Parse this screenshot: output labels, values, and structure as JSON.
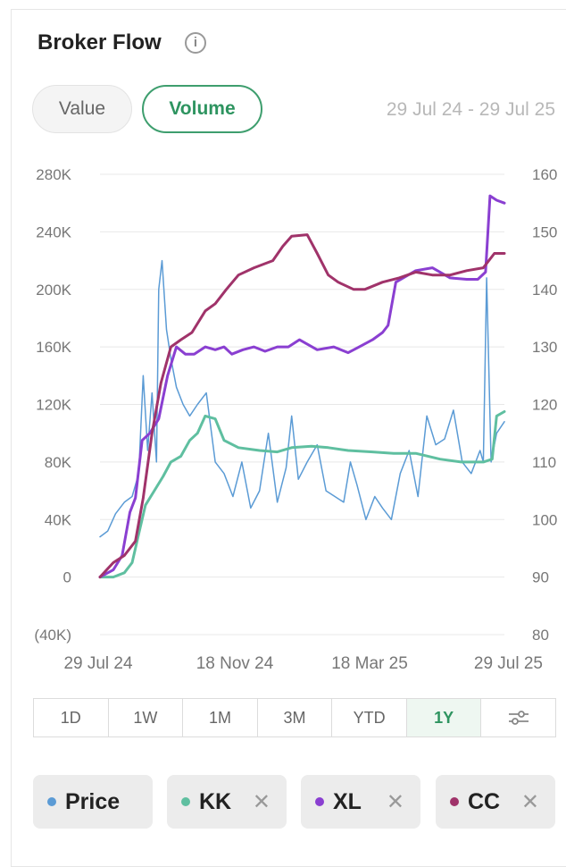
{
  "header": {
    "title": "Broker Flow",
    "info_icon": "info-icon",
    "info_glyph": "i"
  },
  "toggles": [
    {
      "label": "Value",
      "active": false
    },
    {
      "label": "Volume",
      "active": true
    }
  ],
  "date_range": "29 Jul 24 - 29 Jul 25",
  "periods": [
    {
      "label": "1D",
      "active": false
    },
    {
      "label": "1W",
      "active": false
    },
    {
      "label": "1M",
      "active": false
    },
    {
      "label": "3M",
      "active": false
    },
    {
      "label": "YTD",
      "active": false
    },
    {
      "label": "1Y",
      "active": true
    }
  ],
  "settings_icon": "sliders-icon",
  "legend": [
    {
      "label": "Price",
      "color": "#5b9bd5",
      "removable": false
    },
    {
      "label": "KK",
      "color": "#5fbfa0",
      "removable": true
    },
    {
      "label": "XL",
      "color": "#8a3fd1",
      "removable": true
    },
    {
      "label": "CC",
      "color": "#a0336a",
      "removable": true
    }
  ],
  "remove_glyph": "✕",
  "chart_data": {
    "type": "line",
    "x_ticks": [
      "29 Jul 24",
      "18 Nov 24",
      "18 Mar 25",
      "29 Jul 25"
    ],
    "x_range": [
      "2024-07-29",
      "2025-07-29"
    ],
    "left_axis": {
      "ticks": [
        "280K",
        "240K",
        "200K",
        "160K",
        "120K",
        "80K",
        "40K",
        "0",
        "(40K)"
      ],
      "ylim": [
        -40000,
        280000
      ]
    },
    "right_axis": {
      "ticks": [
        "160",
        "150",
        "140",
        "130",
        "120",
        "110",
        "100",
        "90",
        "80"
      ],
      "ylim": [
        80,
        160
      ]
    },
    "grid": true,
    "series": [
      {
        "name": "Price",
        "axis": "right",
        "color": "#5b9bd5",
        "stroke": 1.5,
        "x": [
          "2024-07-29",
          "2024-08-05",
          "2024-08-12",
          "2024-08-20",
          "2024-08-27",
          "2024-09-02",
          "2024-09-06",
          "2024-09-10",
          "2024-09-14",
          "2024-09-18",
          "2024-09-20",
          "2024-09-23",
          "2024-09-27",
          "2024-10-01",
          "2024-10-06",
          "2024-10-12",
          "2024-10-18",
          "2024-10-25",
          "2024-11-02",
          "2024-11-10",
          "2024-11-18",
          "2024-11-26",
          "2024-12-04",
          "2024-12-12",
          "2024-12-20",
          "2024-12-28",
          "2025-01-05",
          "2025-01-13",
          "2025-01-18",
          "2025-01-24",
          "2025-02-01",
          "2025-02-10",
          "2025-02-18",
          "2025-02-26",
          "2025-03-06",
          "2025-03-12",
          "2025-03-18",
          "2025-03-26",
          "2025-04-03",
          "2025-04-10",
          "2025-04-18",
          "2025-04-26",
          "2025-05-04",
          "2025-05-12",
          "2025-05-20",
          "2025-05-28",
          "2025-06-05",
          "2025-06-13",
          "2025-06-21",
          "2025-06-29",
          "2025-07-07",
          "2025-07-10",
          "2025-07-13",
          "2025-07-17",
          "2025-07-22",
          "2025-07-29"
        ],
        "y": [
          97,
          98,
          101,
          103,
          104,
          108,
          125,
          112,
          122,
          110,
          140,
          145,
          133,
          128,
          123,
          120,
          118,
          120,
          122,
          110,
          108,
          104,
          110,
          102,
          105,
          115,
          103,
          109,
          118,
          107,
          110,
          113,
          105,
          104,
          103,
          110,
          106,
          100,
          104,
          102,
          100,
          108,
          112,
          104,
          118,
          113,
          114,
          119,
          110,
          108,
          112,
          110,
          142,
          110,
          115,
          117
        ]
      },
      {
        "name": "KK",
        "axis": "left",
        "color": "#5fbfa0",
        "stroke": 3,
        "x": [
          "2024-07-29",
          "2024-08-10",
          "2024-08-20",
          "2024-08-27",
          "2024-09-02",
          "2024-09-08",
          "2024-09-16",
          "2024-09-24",
          "2024-10-01",
          "2024-10-10",
          "2024-10-18",
          "2024-10-25",
          "2024-11-01",
          "2024-11-10",
          "2024-11-18",
          "2024-12-01",
          "2024-12-20",
          "2025-01-05",
          "2025-01-18",
          "2025-02-05",
          "2025-02-20",
          "2025-03-10",
          "2025-04-01",
          "2025-04-20",
          "2025-05-10",
          "2025-06-01",
          "2025-06-20",
          "2025-07-10",
          "2025-07-18",
          "2025-07-22",
          "2025-07-29"
        ],
        "y": [
          0,
          0,
          3000,
          10000,
          30000,
          50000,
          60000,
          70000,
          80000,
          84000,
          95000,
          100000,
          112000,
          110000,
          95000,
          90000,
          88000,
          87000,
          90000,
          91000,
          90000,
          88000,
          87000,
          86000,
          86000,
          82000,
          80000,
          80000,
          82000,
          112000,
          115000
        ]
      },
      {
        "name": "XL",
        "axis": "left",
        "color": "#8a3fd1",
        "stroke": 3,
        "x": [
          "2024-07-29",
          "2024-08-10",
          "2024-08-18",
          "2024-08-25",
          "2024-08-30",
          "2024-09-05",
          "2024-09-12",
          "2024-09-20",
          "2024-09-28",
          "2024-10-06",
          "2024-10-14",
          "2024-10-22",
          "2024-11-01",
          "2024-11-10",
          "2024-11-18",
          "2024-11-25",
          "2024-12-05",
          "2024-12-15",
          "2024-12-25",
          "2025-01-05",
          "2025-01-15",
          "2025-01-25",
          "2025-02-10",
          "2025-02-25",
          "2025-03-10",
          "2025-03-20",
          "2025-04-01",
          "2025-04-10",
          "2025-04-15",
          "2025-04-22",
          "2025-05-10",
          "2025-05-25",
          "2025-06-10",
          "2025-06-25",
          "2025-07-05",
          "2025-07-12",
          "2025-07-16",
          "2025-07-22",
          "2025-07-29"
        ],
        "y": [
          0,
          5000,
          15000,
          45000,
          55000,
          95000,
          100000,
          110000,
          140000,
          160000,
          155000,
          155000,
          160000,
          158000,
          160000,
          155000,
          158000,
          160000,
          157000,
          160000,
          160000,
          165000,
          158000,
          160000,
          156000,
          160000,
          165000,
          170000,
          175000,
          205000,
          213000,
          215000,
          208000,
          207000,
          207000,
          212000,
          265000,
          262000,
          260000
        ]
      },
      {
        "name": "CC",
        "axis": "left",
        "color": "#a0336a",
        "stroke": 3,
        "x": [
          "2024-07-29",
          "2024-08-10",
          "2024-08-20",
          "2024-08-30",
          "2024-09-06",
          "2024-09-14",
          "2024-09-22",
          "2024-10-01",
          "2024-10-10",
          "2024-10-20",
          "2024-11-01",
          "2024-11-10",
          "2024-11-20",
          "2024-12-01",
          "2024-12-15",
          "2025-01-01",
          "2025-01-10",
          "2025-01-18",
          "2025-02-01",
          "2025-02-10",
          "2025-02-20",
          "2025-03-01",
          "2025-03-15",
          "2025-03-25",
          "2025-04-10",
          "2025-04-25",
          "2025-05-10",
          "2025-05-25",
          "2025-06-10",
          "2025-06-25",
          "2025-07-10",
          "2025-07-20",
          "2025-07-29"
        ],
        "y": [
          0,
          10000,
          15000,
          25000,
          55000,
          100000,
          135000,
          160000,
          165000,
          170000,
          185000,
          190000,
          200000,
          210000,
          215000,
          220000,
          230000,
          237000,
          238000,
          225000,
          210000,
          205000,
          200000,
          200000,
          205000,
          208000,
          212000,
          210000,
          210000,
          213000,
          215000,
          225000,
          225000
        ]
      }
    ]
  }
}
